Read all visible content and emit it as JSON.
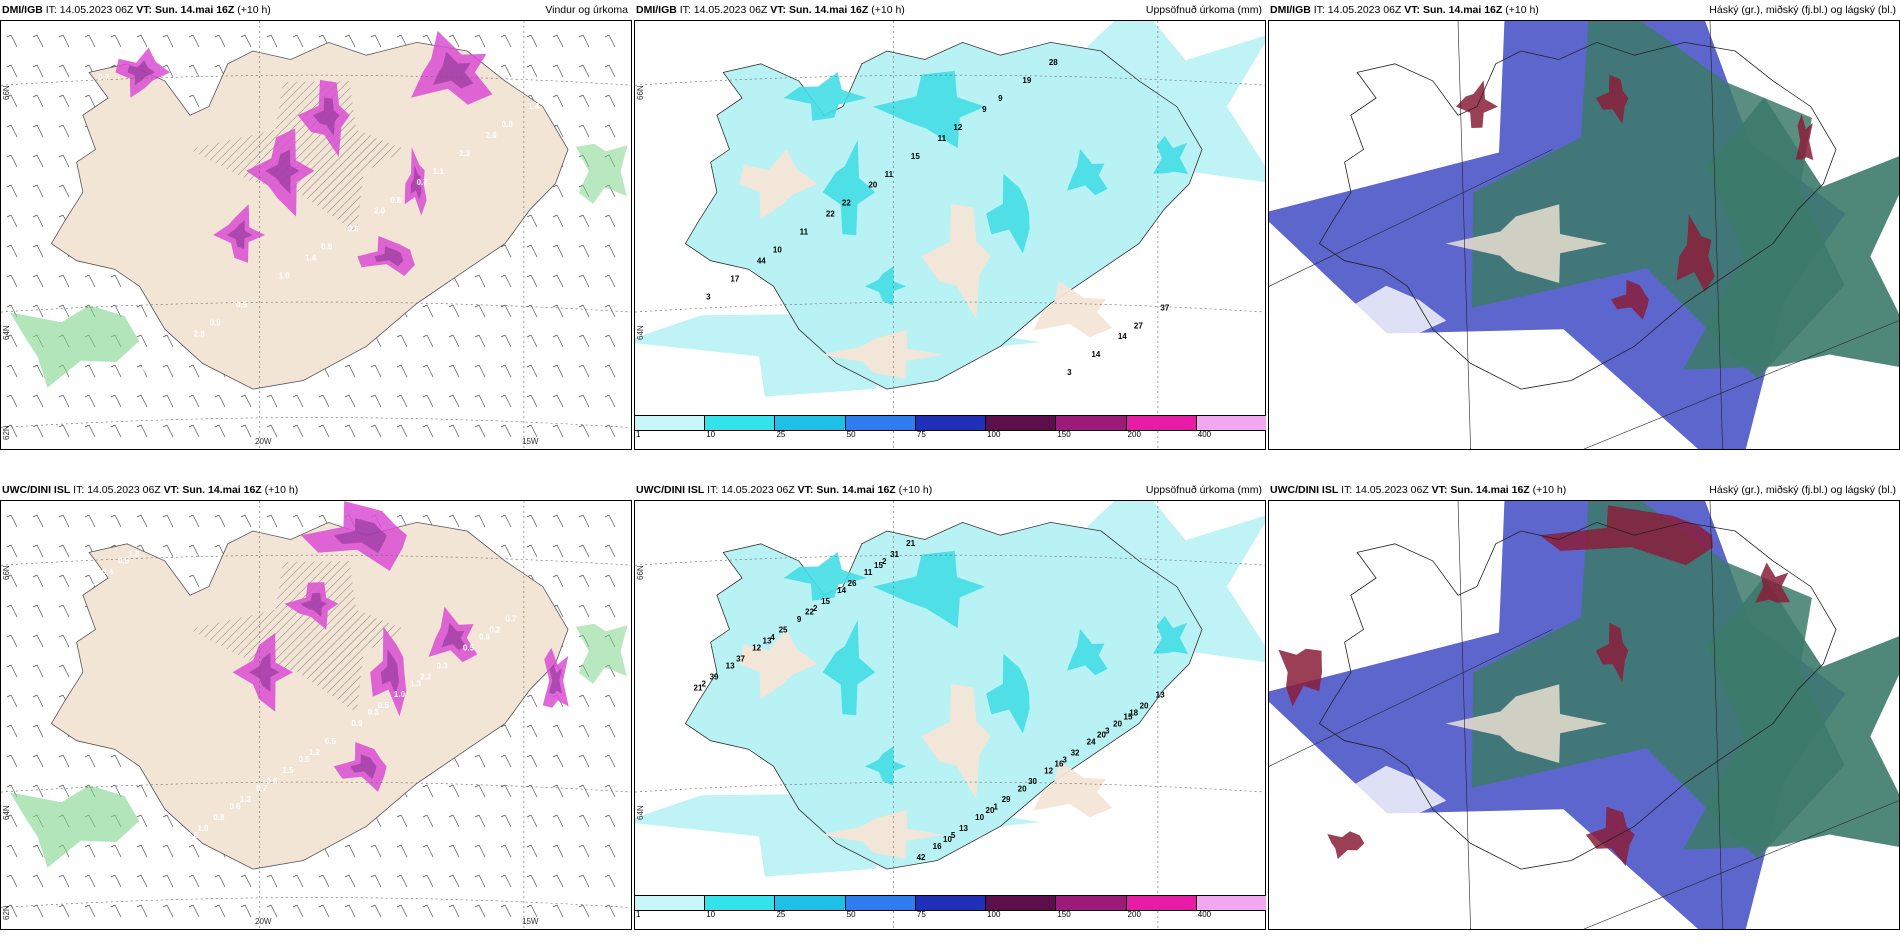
{
  "panels": [
    {
      "id": "p1",
      "model": "DMI/IGB",
      "it_label": "IT:",
      "it_value": "14.05.2023 06Z",
      "vt_label": "VT:",
      "vt_value": "Sun. 14.mai 16Z",
      "lead": "(+10 h)",
      "product": "Vindur og úrkoma",
      "kind": "wind",
      "axis_labels": {
        "left_top": "66N",
        "left_mid": "64N",
        "left_bot": "62N",
        "bottom_a": "20W",
        "bottom_b": "15W"
      },
      "values": [
        "0.7",
        "2.0",
        "2.8",
        "2.6",
        "1.4",
        "2.0",
        "0.7",
        "0.5",
        "1.4",
        "0.6",
        "1.2",
        "2.3",
        "1.0",
        "0.7",
        "0.8",
        "0.9",
        "0.8",
        "0.9",
        "1.2",
        "1.1"
      ]
    },
    {
      "id": "p2",
      "model": "DMI/IGB",
      "it_label": "IT:",
      "it_value": "14.05.2023 06Z",
      "vt_label": "VT:",
      "vt_value": "Sun. 14.mai 16Z",
      "lead": "(+10 h)",
      "product": "Uppsöfnuð úrkoma (mm)",
      "kind": "precip",
      "axis_labels": {
        "left_top": "66N",
        "left_mid": "64N"
      },
      "values": [
        "22",
        "14",
        "11",
        "44",
        "28",
        "20",
        "37",
        "9",
        "11",
        "14",
        "15",
        "17",
        "19",
        "22",
        "27",
        "12",
        "10",
        "3",
        "11",
        "3",
        "9"
      ]
    },
    {
      "id": "p3",
      "model": "DMI/IGB",
      "it_label": "IT:",
      "it_value": "14.05.2023 06Z",
      "vt_label": "VT:",
      "vt_value": "Sun. 14.mai 16Z",
      "lead": "(+10 h)",
      "product": "Háský (gr.), miðský (fj.bl.) og lágský (bl.)",
      "kind": "cloud",
      "values": []
    },
    {
      "id": "p4",
      "model": "UWC/DINI ISL",
      "it_label": "IT:",
      "it_value": "14.05.2023 06Z",
      "vt_label": "VT:",
      "vt_value": "Sun. 14.mai 16Z",
      "lead": "(+10 h)",
      "product": "",
      "kind": "wind",
      "axis_labels": {
        "left_top": "66N",
        "left_mid": "64N",
        "left_bot": "62N",
        "bottom_a": "20W",
        "bottom_b": "15W"
      },
      "values": [
        "0.5",
        "0.9",
        "0.5",
        "1.9",
        "0.2",
        "1.2",
        "1.8",
        "2.2",
        "1.3",
        "1.0",
        "0.9",
        "0.6",
        "0.5",
        "1.5",
        "0.4",
        "1.0",
        "0.8",
        "0.7",
        "0.5",
        "0.6",
        "0.3",
        "0.7",
        "0.4",
        "0.3",
        "0.6",
        "0.6",
        "0.5",
        "0.5",
        "1.3",
        "0.6"
      ]
    },
    {
      "id": "p5",
      "model": "UWC/DINI ISL",
      "it_label": "IT:",
      "it_value": "14.05.2023 06Z",
      "vt_label": "VT:",
      "vt_value": "Sun. 14.mai 16Z",
      "lead": "(+10 h)",
      "product": "Uppsöfnuð úrkoma (mm)",
      "kind": "precip",
      "axis_labels": {
        "left_top": "66N",
        "left_mid": "64N"
      },
      "values": [
        "15",
        "10",
        "13",
        "16",
        "15",
        "21",
        "20",
        "22",
        "20",
        "42",
        "37",
        "30",
        "26",
        "20",
        "13",
        "25",
        "32",
        "31",
        "39",
        "29",
        "15",
        "20",
        "16",
        "12",
        "12",
        "11",
        "13",
        "10",
        "9",
        "24",
        "21",
        "13",
        "20",
        "14",
        "18",
        "5",
        "4",
        "3",
        "2",
        "2",
        "1",
        "2",
        "3"
      ]
    },
    {
      "id": "p6",
      "model": "UWC/DINI ISL",
      "it_label": "IT:",
      "it_value": "14.05.2023 06Z",
      "vt_label": "VT:",
      "vt_value": "Sun. 14.mai 16Z",
      "lead": "(+10 h)",
      "product": "Háský (gr.), miðský (fj.bl.) og lágský (bl.)",
      "kind": "cloud",
      "values": []
    }
  ],
  "colorbar": {
    "ticks": [
      "1",
      "10",
      "25",
      "50",
      "75",
      "100",
      "150",
      "200",
      "400"
    ],
    "colors": [
      "#c8f5f7",
      "#33e3ea",
      "#1fc0e6",
      "#2f7cf0",
      "#1f2fb8",
      "#5c0f4a",
      "#9c1a7a",
      "#e61ba6",
      "#f2a8f0"
    ]
  },
  "colors": {
    "land": "#f3e5d6",
    "precip_light": "#b8f2f4",
    "precip_mid": "#44dde6",
    "wind_precip": "#d94ed4",
    "wind_precip_dark": "#7a2a86",
    "green": "#7fd38a",
    "cloud_high": "#3c7a6a",
    "cloud_mid": "#4a55c8",
    "cloud_low": "#8a1d3a"
  }
}
